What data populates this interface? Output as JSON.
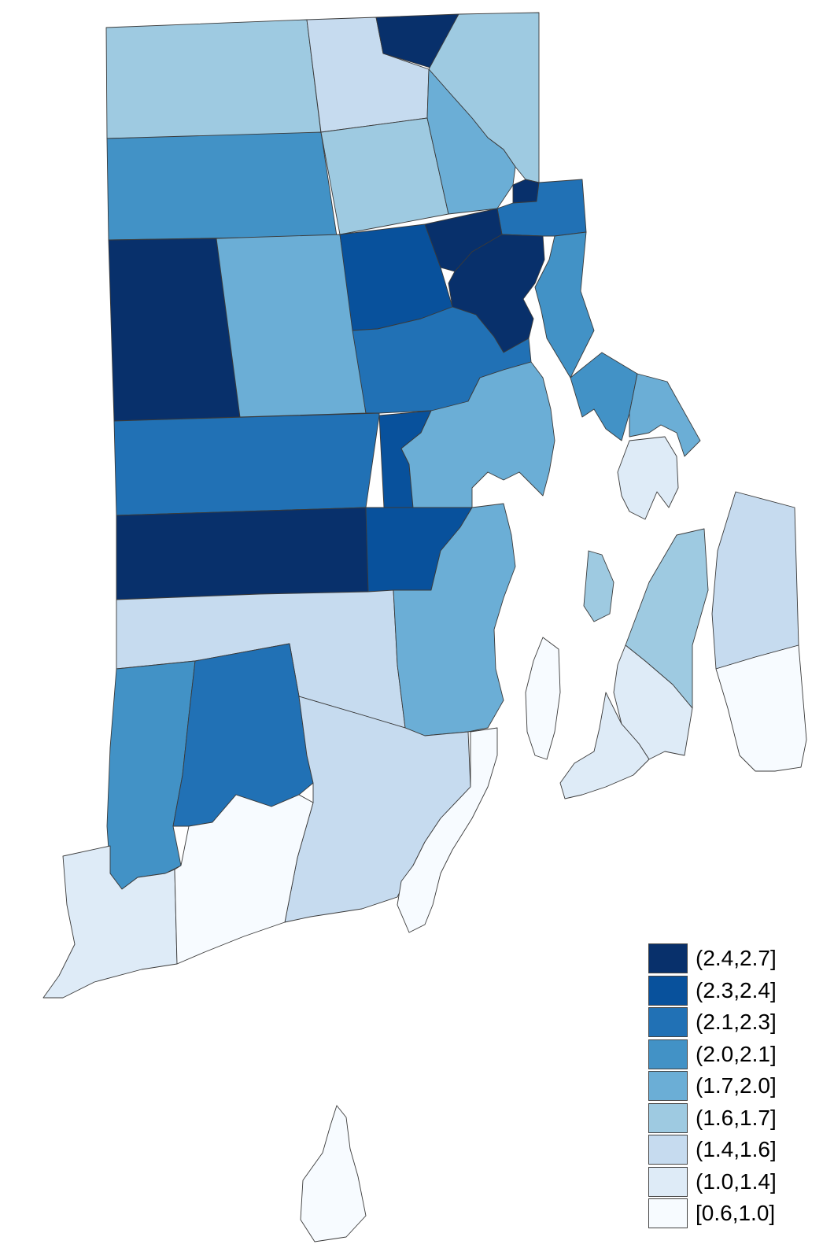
{
  "map": {
    "legend": [
      {
        "label": "(2.4,2.7]",
        "color": "#08306b"
      },
      {
        "label": "(2.3,2.4]",
        "color": "#08519c"
      },
      {
        "label": "(2.1,2.3]",
        "color": "#2171b5"
      },
      {
        "label": "(2.0,2.1]",
        "color": "#4292c6"
      },
      {
        "label": "(1.7,2.0]",
        "color": "#6baed6"
      },
      {
        "label": "(1.6,1.7]",
        "color": "#9ecae1"
      },
      {
        "label": "(1.4,1.6]",
        "color": "#c6dbef"
      },
      {
        "label": "(1.0,1.4]",
        "color": "#deebf7"
      },
      {
        "label": "[0.6,1.0]",
        "color": "#f7fbff"
      }
    ],
    "regions": [
      {
        "id": "burrillville",
        "class": 5
      },
      {
        "id": "north-smithfield",
        "class": 6
      },
      {
        "id": "woonsocket",
        "class": 0
      },
      {
        "id": "cumberland",
        "class": 5
      },
      {
        "id": "glocester",
        "class": 3
      },
      {
        "id": "smithfield",
        "class": 5
      },
      {
        "id": "lincoln",
        "class": 4
      },
      {
        "id": "central-falls",
        "class": 0
      },
      {
        "id": "pawtucket",
        "class": 2
      },
      {
        "id": "foster",
        "class": 0
      },
      {
        "id": "scituate",
        "class": 4
      },
      {
        "id": "johnston",
        "class": 1
      },
      {
        "id": "north-providence",
        "class": 0
      },
      {
        "id": "providence",
        "class": 0
      },
      {
        "id": "east-providence",
        "class": 3
      },
      {
        "id": "cranston",
        "class": 2
      },
      {
        "id": "barrington",
        "class": 3
      },
      {
        "id": "warren",
        "class": 4
      },
      {
        "id": "coventry",
        "class": 2
      },
      {
        "id": "west-warwick",
        "class": 1
      },
      {
        "id": "warwick",
        "class": 4
      },
      {
        "id": "west-greenwich",
        "class": 0
      },
      {
        "id": "east-greenwich",
        "class": 1
      },
      {
        "id": "bristol",
        "class": 7
      },
      {
        "id": "prudence-island",
        "class": 5
      },
      {
        "id": "tiverton",
        "class": 6
      },
      {
        "id": "exeter",
        "class": 6
      },
      {
        "id": "north-kingstown",
        "class": 4
      },
      {
        "id": "portsmouth",
        "class": 5
      },
      {
        "id": "hopkinton",
        "class": 3
      },
      {
        "id": "richmond",
        "class": 2
      },
      {
        "id": "south-kingstown",
        "class": 6
      },
      {
        "id": "jamestown",
        "class": 8
      },
      {
        "id": "middletown",
        "class": 7
      },
      {
        "id": "newport",
        "class": 7
      },
      {
        "id": "little-compton",
        "class": 8
      },
      {
        "id": "westerly",
        "class": 7
      },
      {
        "id": "charlestown",
        "class": 8
      },
      {
        "id": "narragansett",
        "class": 8
      },
      {
        "id": "new-shoreham",
        "class": 8
      }
    ]
  }
}
